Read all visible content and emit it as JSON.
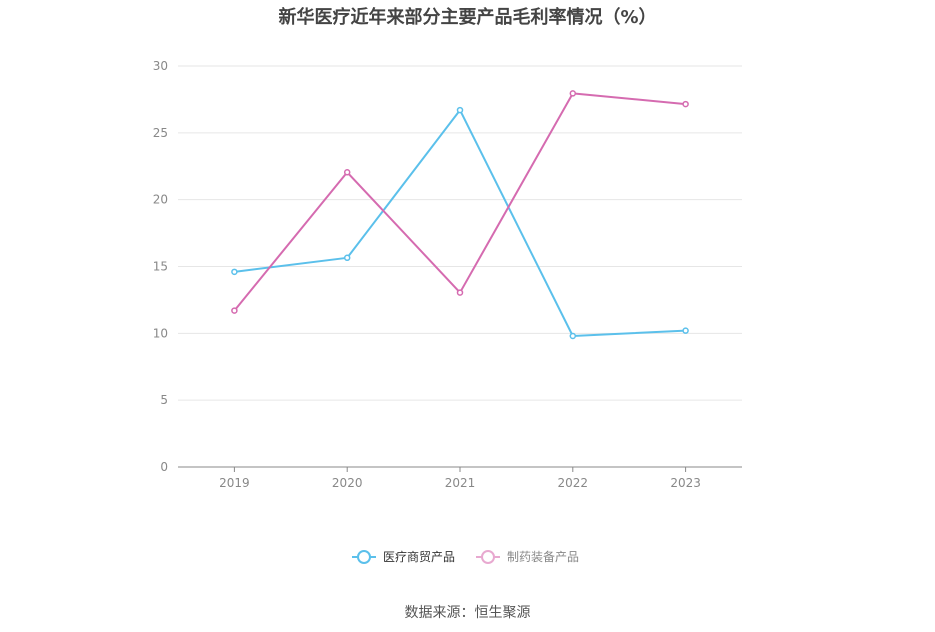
{
  "chart_data": {
    "type": "line",
    "title": "新华医疗近年来部分主要产品毛利率情况（%）",
    "categories": [
      "2019",
      "2020",
      "2021",
      "2022",
      "2023"
    ],
    "ylim": [
      0,
      30
    ],
    "yticks": [
      0,
      5,
      10,
      15,
      20,
      25,
      30
    ],
    "grid": true,
    "legend_position": "bottom",
    "series": [
      {
        "name": "医疗商贸产品",
        "color": "#5bc0eb",
        "values": [
          14.6,
          15.65,
          26.7,
          9.8,
          10.2
        ]
      },
      {
        "name": "制药装备产品",
        "color": "#d56bb0",
        "values": [
          11.7,
          22.05,
          13.05,
          27.95,
          27.15
        ]
      }
    ]
  },
  "source": "数据来源：恒生聚源"
}
